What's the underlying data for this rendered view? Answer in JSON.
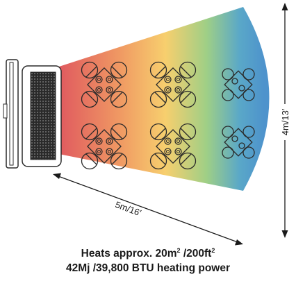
{
  "dimensions": {
    "depth_label": "5m/16′",
    "width_label": "4m/13′"
  },
  "caption": {
    "line1_prefix": "Heats approx. 20m",
    "line1_mid": " /200ft",
    "sup": "2",
    "line2": "42Mj /39,800 BTU heating power"
  },
  "gradient_colors": [
    "#e05a5f",
    "#f09a63",
    "#f7cf6e",
    "#9fcf86",
    "#5aa8c8",
    "#4e93cc"
  ],
  "layout": {
    "rows_of_table_sets": 2,
    "table_sets_per_row": 3,
    "seats_per_table": 4
  }
}
